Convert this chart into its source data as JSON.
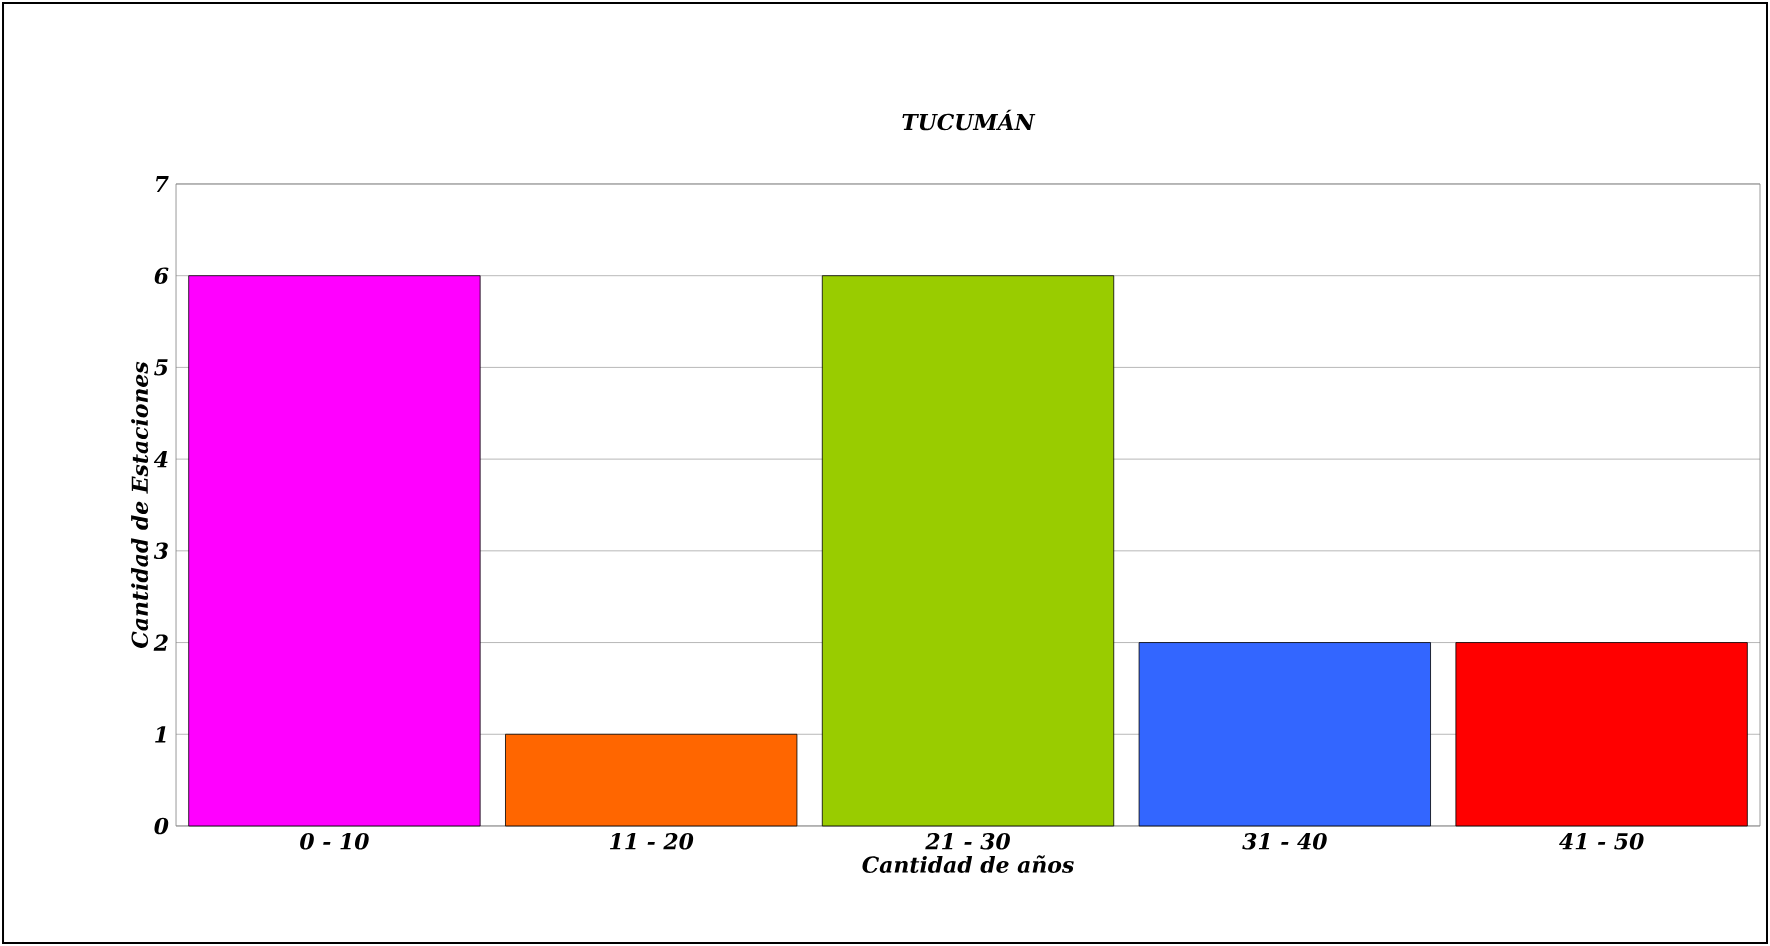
{
  "chart_data": {
    "type": "bar",
    "title": "TUCUMÁN",
    "xlabel": "Cantidad de años",
    "ylabel": "Cantidad de Estaciones",
    "categories": [
      "0 - 10",
      "11 - 20",
      "21 - 30",
      "31 - 40",
      "41 - 50"
    ],
    "values": [
      6,
      1,
      6,
      2,
      2
    ],
    "colors": [
      "#ff00ff",
      "#ff6600",
      "#99cc00",
      "#3366ff",
      "#ff0000"
    ],
    "ylim": [
      0,
      7
    ],
    "yticks": [
      0,
      1,
      2,
      3,
      4,
      5,
      6,
      7
    ],
    "grid": "y"
  }
}
